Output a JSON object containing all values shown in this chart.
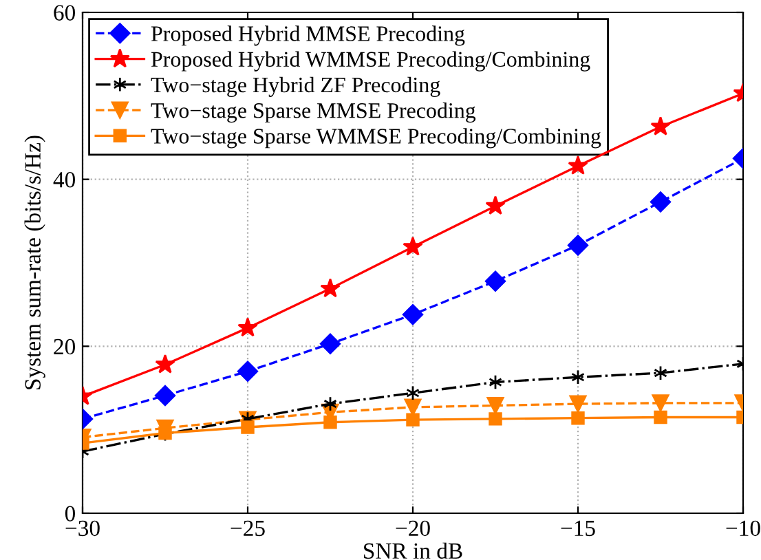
{
  "chart_data": {
    "type": "line",
    "xlabel": "SNR in dB",
    "ylabel": "System sum-rate (bits/s/Hz)",
    "x": [
      -30,
      -27.5,
      -25,
      -22.5,
      -20,
      -17.5,
      -15,
      -12.5,
      -10
    ],
    "xlim": [
      -30,
      -10
    ],
    "xticks": [
      {
        "value": -30,
        "label": "−30"
      },
      {
        "value": -25,
        "label": "−25"
      },
      {
        "value": -20,
        "label": "−20"
      },
      {
        "value": -15,
        "label": "−15"
      },
      {
        "value": -10,
        "label": "−10"
      }
    ],
    "ylim": [
      0,
      60
    ],
    "yticks": [
      0,
      20,
      40,
      60
    ],
    "grid": true,
    "legend": "top left",
    "series": [
      {
        "name": "Proposed Hybrid MMSE Precoding",
        "color": "#0000ff",
        "marker": "diamond",
        "line_style": "dashed",
        "values": [
          11.3,
          14.1,
          17.0,
          20.3,
          23.8,
          27.8,
          32.1,
          37.3,
          42.5
        ]
      },
      {
        "name": "Proposed Hybrid WMMSE Precoding/Combining",
        "color": "#ff0000",
        "marker": "star",
        "line_style": "solid",
        "values": [
          14.0,
          17.8,
          22.2,
          26.9,
          31.9,
          36.8,
          41.6,
          46.3,
          50.3
        ]
      },
      {
        "name": "Two−stage Hybrid ZF Precoding",
        "color": "#000000",
        "marker": "cross",
        "line_style": "dashdot",
        "values": [
          7.4,
          9.5,
          11.3,
          13.1,
          14.4,
          15.7,
          16.3,
          16.8,
          17.9
        ]
      },
      {
        "name": "Two−stage Sparse MMSE Precoding",
        "color": "#ff8000",
        "marker": "triangle",
        "line_style": "dashed",
        "values": [
          9.1,
          10.2,
          11.2,
          12.1,
          12.7,
          12.9,
          13.1,
          13.2,
          13.2
        ]
      },
      {
        "name": "Two−stage Sparse WMMSE Precoding/Combining",
        "color": "#ff8000",
        "marker": "square",
        "line_style": "solid",
        "values": [
          8.4,
          9.6,
          10.3,
          10.9,
          11.2,
          11.3,
          11.4,
          11.5,
          11.5
        ]
      }
    ]
  }
}
